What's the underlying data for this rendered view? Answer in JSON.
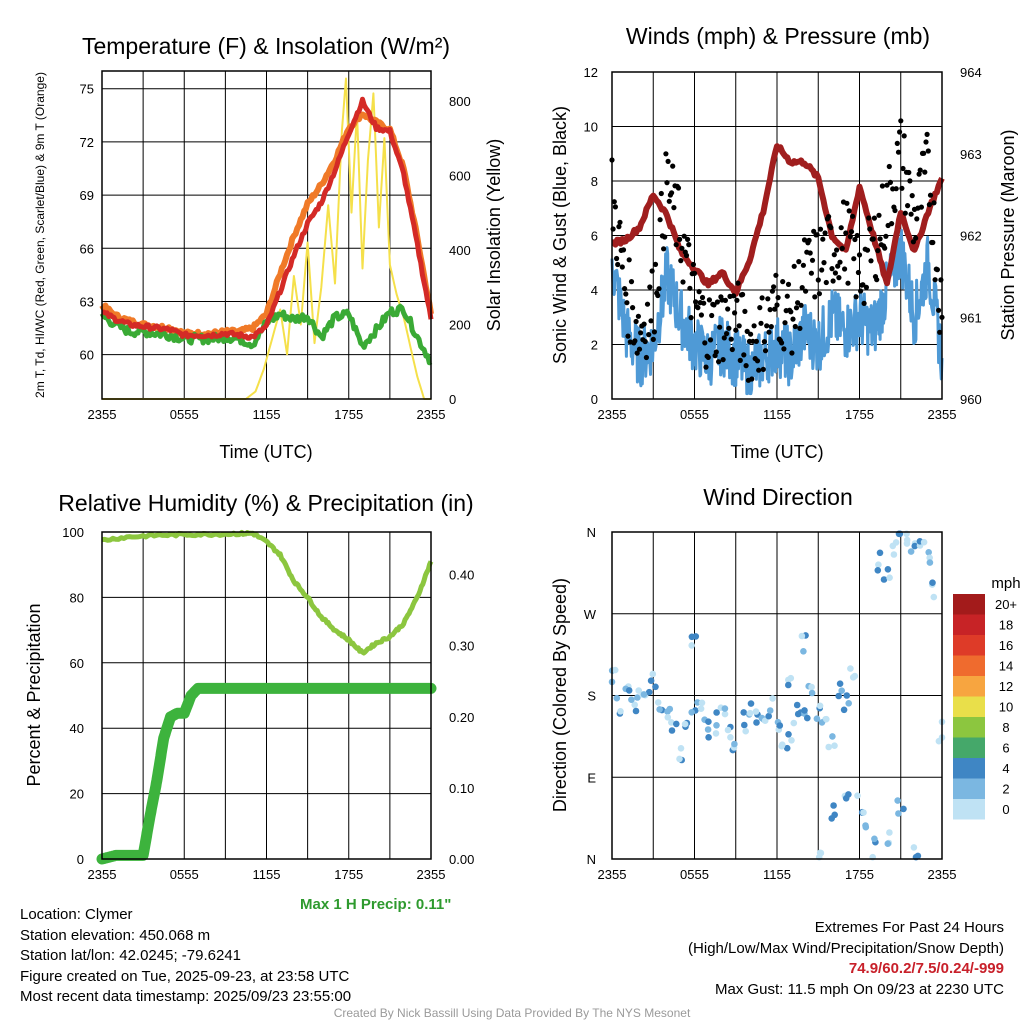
{
  "chart_data": [
    {
      "type": "line",
      "title": "Temperature (F) & Insolation (W/m²)",
      "xlabel": "Time (UTC)",
      "ylabel": "2m T, Td, HI/WC (Red, Green, Scarlet/Blue) & 9m T (Orange)",
      "ylabel_right": "Solar Insolation (Yellow)",
      "x_ticks": [
        "2355",
        "0555",
        "1155",
        "1755",
        "2355"
      ],
      "ylim": [
        57.5,
        76
      ],
      "y_ticks": [
        60,
        63,
        66,
        69,
        72,
        75
      ],
      "y2lim": [
        0,
        880
      ],
      "y2_ticks": [
        0,
        200,
        400,
        600,
        800
      ],
      "series": [
        {
          "name": "9m T",
          "color": "#f07a28",
          "x": [
            0,
            1,
            2,
            3,
            4,
            5,
            6,
            7,
            8,
            9,
            10,
            11,
            12,
            13,
            14,
            15,
            16,
            17,
            18,
            19,
            20,
            21,
            22,
            23,
            24
          ],
          "values": [
            62.8,
            62.2,
            61.9,
            61.7,
            61.6,
            61.5,
            61.2,
            61.2,
            61.2,
            61.3,
            61.3,
            61.5,
            62.3,
            64.6,
            66.7,
            68.5,
            69.6,
            71.0,
            72.8,
            73.6,
            73.1,
            72.7,
            70.5,
            66.6,
            62.3
          ]
        },
        {
          "name": "2m T",
          "color": "#d42a26",
          "x": [
            0,
            1,
            2,
            3,
            4,
            5,
            6,
            7,
            8,
            9,
            10,
            11,
            12,
            13,
            14,
            15,
            16,
            17,
            18,
            19,
            20,
            21,
            22,
            23,
            24
          ],
          "values": [
            62.4,
            62.0,
            61.7,
            61.6,
            61.5,
            61.4,
            61.1,
            61.1,
            61.1,
            61.2,
            61.1,
            61.0,
            61.6,
            63.6,
            65.6,
            67.4,
            68.6,
            70.4,
            72.5,
            74.3,
            72.8,
            72.6,
            70.2,
            66.2,
            62.0
          ]
        },
        {
          "name": "2m Td",
          "color": "#3aaa35",
          "x": [
            0,
            1,
            2,
            3,
            4,
            5,
            6,
            7,
            8,
            9,
            10,
            11,
            12,
            13,
            14,
            15,
            16,
            17,
            18,
            19,
            20,
            21,
            22,
            23,
            24
          ],
          "values": [
            62.2,
            61.7,
            61.3,
            61.3,
            61.2,
            61.1,
            60.9,
            60.9,
            60.9,
            61.0,
            60.9,
            60.6,
            61.8,
            62.3,
            62.0,
            62.2,
            61.0,
            62.1,
            62.3,
            60.5,
            61.4,
            62.4,
            62.6,
            61.0,
            59.6
          ]
        },
        {
          "name": "Solar Insolation",
          "axis": "right",
          "color": "#f5e04a",
          "x": [
            0,
            4,
            8,
            10.5,
            11.2,
            11.8,
            12.4,
            13.0,
            13.5,
            14.0,
            14.5,
            15.0,
            15.5,
            16.0,
            16.5,
            17.0,
            17.5,
            17.8,
            18.2,
            18.6,
            19.0,
            19.4,
            19.8,
            20.2,
            20.6,
            21.0,
            21.5,
            22.0,
            22.5,
            23.0,
            23.5,
            24.0
          ],
          "values": [
            0,
            0,
            0,
            0,
            20,
            80,
            160,
            240,
            120,
            330,
            200,
            420,
            150,
            300,
            520,
            310,
            720,
            860,
            500,
            770,
            350,
            640,
            820,
            460,
            700,
            360,
            280,
            220,
            140,
            60,
            0,
            0
          ]
        }
      ]
    },
    {
      "type": "line",
      "title": "Winds (mph) & Pressure (mb)",
      "xlabel": "Time (UTC)",
      "ylabel": "Sonic Wind & Gust (Blue, Black)",
      "ylabel_right": "Station Pressure (Maroon)",
      "x_ticks": [
        "2355",
        "0555",
        "1155",
        "1755",
        "2355"
      ],
      "ylim": [
        0,
        12
      ],
      "y_ticks": [
        0,
        2,
        4,
        6,
        8,
        10,
        12
      ],
      "y2lim": [
        960,
        964
      ],
      "y2_ticks": [
        960,
        961,
        962,
        963,
        964
      ],
      "series": [
        {
          "name": "Sonic Wind",
          "color": "#4f9ad6",
          "x": [
            0,
            1,
            2,
            3,
            4,
            5,
            6,
            7,
            8,
            9,
            10,
            11,
            12,
            13,
            14,
            15,
            16,
            17,
            18,
            19,
            20,
            21,
            22,
            23,
            24
          ],
          "values": [
            5.0,
            2.5,
            1.5,
            2.0,
            4.5,
            3.0,
            2.0,
            1.5,
            2.0,
            1.5,
            1.0,
            1.5,
            2.0,
            1.5,
            2.5,
            2.0,
            3.0,
            2.5,
            3.0,
            2.5,
            4.0,
            5.5,
            3.0,
            5.0,
            1.5
          ]
        },
        {
          "name": "Gust",
          "color": "#000000",
          "x": [
            0,
            1,
            2,
            3,
            4,
            5,
            6,
            7,
            8,
            9,
            10,
            11,
            12,
            13,
            14,
            15,
            16,
            17,
            18,
            19,
            20,
            21,
            22,
            23,
            24
          ],
          "values": [
            7.5,
            4.0,
            2.5,
            3.5,
            8.0,
            6.0,
            3.5,
            2.5,
            2.8,
            3.0,
            2.0,
            2.5,
            3.5,
            3.0,
            4.5,
            5.0,
            5.5,
            6.0,
            4.5,
            5.5,
            7.0,
            9.0,
            6.5,
            8.5,
            3.0
          ]
        },
        {
          "name": "Station Pressure",
          "axis": "right",
          "color": "#a01e1e",
          "x": [
            0,
            1,
            2,
            3,
            4,
            5,
            6,
            7,
            8,
            9,
            10,
            11,
            12,
            13,
            14,
            15,
            16,
            17,
            18,
            19,
            20,
            21,
            22,
            23,
            24
          ],
          "values": [
            961.9,
            961.95,
            962.1,
            962.5,
            962.25,
            961.8,
            961.6,
            961.4,
            961.55,
            961.3,
            961.7,
            962.3,
            963.1,
            962.9,
            962.9,
            962.7,
            962.0,
            961.8,
            962.6,
            962.0,
            961.4,
            962.3,
            961.8,
            962.3,
            962.7
          ]
        }
      ]
    },
    {
      "type": "line",
      "title": "Relative Humidity (%) & Precipitation (in)",
      "xlabel": "",
      "ylabel": "Percent & Precipitation",
      "x_ticks": [
        "2355",
        "0555",
        "1155",
        "1755",
        "2355"
      ],
      "ylim": [
        0,
        100
      ],
      "y_ticks": [
        0,
        20,
        40,
        60,
        80,
        100
      ],
      "y2lim": [
        0,
        0.46
      ],
      "y2_ticks": [
        "0.00",
        "0.10",
        "0.20",
        "0.30",
        "0.40"
      ],
      "series": [
        {
          "name": "Relative Humidity",
          "color": "#8cc63f",
          "x": [
            0,
            2,
            4,
            6,
            8,
            10,
            11,
            12,
            13,
            14,
            15,
            16,
            17,
            18,
            19,
            20,
            21,
            22,
            23,
            24
          ],
          "values": [
            97.5,
            98.5,
            99,
            99.2,
            99.3,
            99.5,
            99.6,
            97,
            93,
            85,
            80,
            74,
            70,
            67,
            63,
            66,
            68,
            72,
            80,
            91
          ]
        },
        {
          "name": "Accumulated Precipitation",
          "axis": "right",
          "color": "#3db33d",
          "x": [
            0,
            1,
            2,
            3,
            3.5,
            4,
            4.5,
            5,
            5.5,
            6,
            6.5,
            7,
            24
          ],
          "values": [
            0,
            0.005,
            0.005,
            0.005,
            0.06,
            0.11,
            0.17,
            0.2,
            0.205,
            0.205,
            0.23,
            0.24,
            0.24
          ]
        }
      ]
    },
    {
      "type": "scatter",
      "title": "Wind Direction",
      "ylabel": "Direction (Colored By Speed)",
      "x_ticks": [
        "2355",
        "0555",
        "1155",
        "1755",
        "2355"
      ],
      "y_ticks": [
        "N",
        "E",
        "S",
        "W",
        "N"
      ],
      "ylim": [
        0,
        360
      ],
      "points": [
        [
          0,
          200
        ],
        [
          0.5,
          170
        ],
        [
          1,
          190
        ],
        [
          1.5,
          165
        ],
        [
          2,
          175
        ],
        [
          2.5,
          180
        ],
        [
          3,
          200
        ],
        [
          3.5,
          170
        ],
        [
          4,
          160
        ],
        [
          4.5,
          140
        ],
        [
          5,
          110
        ],
        [
          5.5,
          150
        ],
        [
          6,
          170
        ],
        [
          6.5,
          160
        ],
        [
          7,
          140
        ],
        [
          7.5,
          150
        ],
        [
          8,
          165
        ],
        [
          8.5,
          140
        ],
        [
          9,
          130
        ],
        [
          9.5,
          150
        ],
        [
          10,
          170
        ],
        [
          10.5,
          160
        ],
        [
          11,
          145
        ],
        [
          11.5,
          165
        ],
        [
          12,
          150
        ],
        [
          12.5,
          130
        ],
        [
          13,
          140
        ],
        [
          13.5,
          170
        ],
        [
          14,
          160
        ],
        [
          14.5,
          180
        ],
        [
          15,
          165
        ],
        [
          15.5,
          150
        ],
        [
          16,
          125
        ],
        [
          16.5,
          190
        ],
        [
          17,
          175
        ],
        [
          17.5,
          200
        ],
        [
          18,
          60
        ],
        [
          18.5,
          40
        ],
        [
          19,
          10
        ],
        [
          19.5,
          330
        ],
        [
          20,
          320
        ],
        [
          20.5,
          345
        ],
        [
          21,
          350
        ],
        [
          21.5,
          355
        ],
        [
          22,
          340
        ],
        [
          22.5,
          345
        ],
        [
          23,
          330
        ],
        [
          23.5,
          300
        ],
        [
          24,
          140
        ],
        [
          15,
          5
        ],
        [
          16,
          50
        ],
        [
          17,
          70
        ],
        [
          20,
          20
        ],
        [
          21,
          60
        ],
        [
          22,
          5
        ],
        [
          14,
          240
        ],
        [
          13,
          200
        ],
        [
          6,
          240
        ]
      ],
      "legend_title": "mph",
      "legend_labels": [
        "20+",
        "18",
        "16",
        "14",
        "12",
        "10",
        "8",
        "6",
        "4",
        "2",
        "0"
      ],
      "legend_colors": [
        "#a31b1b",
        "#c72326",
        "#de3b28",
        "#ef6b2e",
        "#f7a540",
        "#e9df4a",
        "#8cc63f",
        "#45a86a",
        "#3f86c4",
        "#7bb7e1",
        "#bfe2f4"
      ]
    }
  ],
  "precip_note": "Max 1 H Precip: 0.11\"",
  "info": {
    "location": "Location: Clymer",
    "elevation": "Station elevation: 450.068 m",
    "latlon": "Station lat/lon: 42.0245; -79.6241",
    "created": "Figure created on Tue, 2025-09-23, at 23:58 UTC",
    "recent": "Most recent data timestamp: 2025/09/23 23:55:00"
  },
  "extremes": {
    "heading": "Extremes For Past 24 Hours",
    "subheading": "(High/Low/Max Wind/Precipitation/Snow Depth)",
    "values": "74.9/60.2/7.5/0.24/-999",
    "gust": "Max Gust: 11.5 mph On 09/23 at 2230 UTC"
  },
  "credit": "Created By Nick Bassill Using Data Provided By The NYS Mesonet"
}
